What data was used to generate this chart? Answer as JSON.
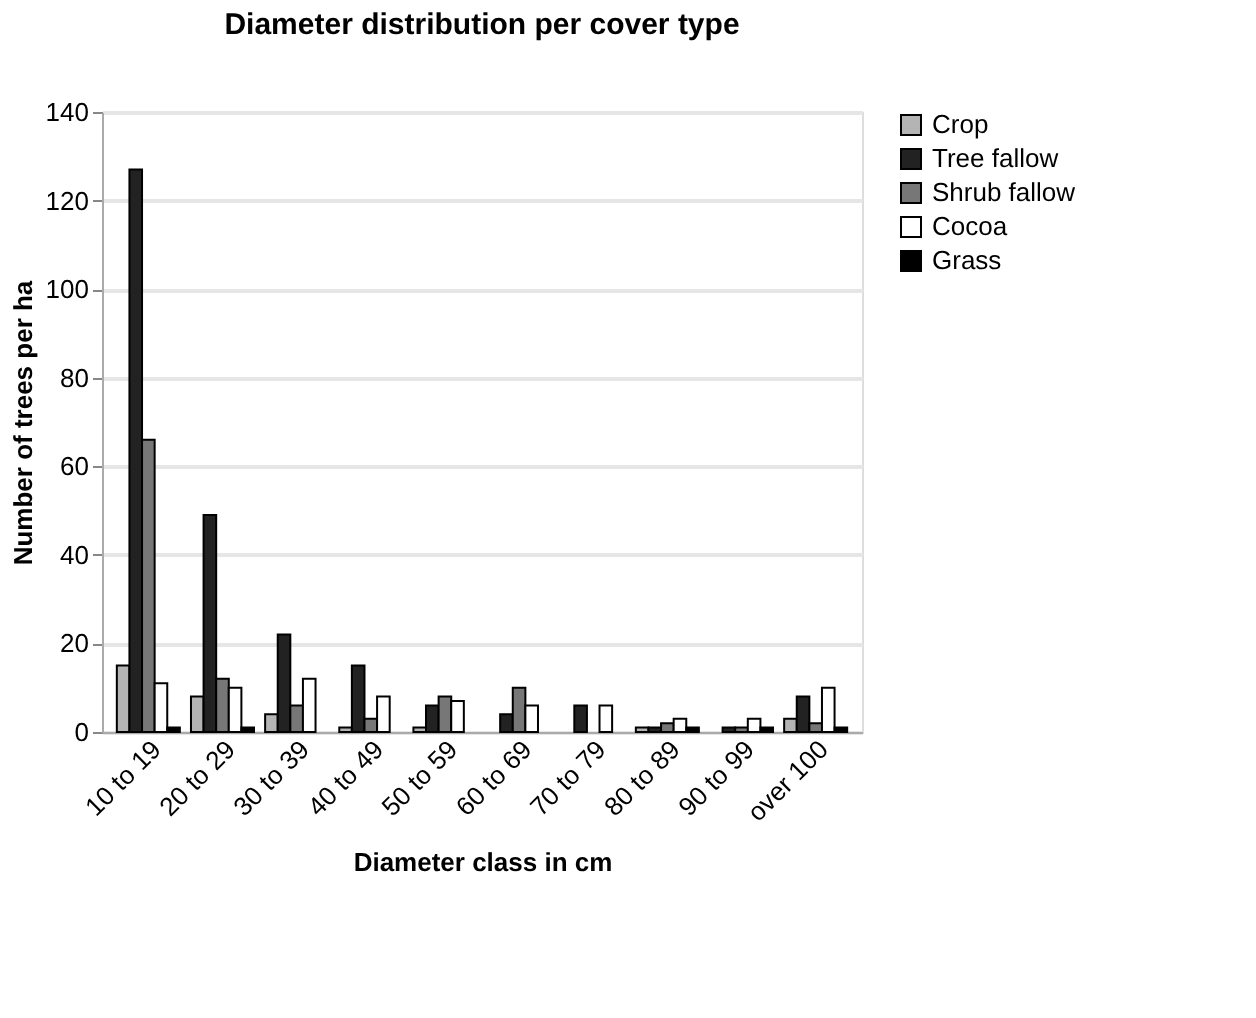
{
  "chart_data": {
    "type": "bar",
    "title": "Diameter distribution per cover type",
    "xlabel": "Diameter class in cm",
    "ylabel": "Number of trees per ha",
    "categories": [
      "10 to 19",
      "20 to 29",
      "30 to 39",
      "40 to 49",
      "50 to 59",
      "60 to 69",
      "70 to 79",
      "80 to 89",
      "90 to 99",
      "over 100"
    ],
    "series": [
      {
        "name": "Crop",
        "color": "#b4b4b4",
        "values": [
          15,
          8,
          4,
          1,
          1,
          0,
          0,
          1,
          0,
          3
        ]
      },
      {
        "name": "Tree fallow",
        "color": "#222222",
        "values": [
          127,
          49,
          22,
          15,
          6,
          4,
          6,
          1,
          1,
          8
        ]
      },
      {
        "name": "Shrub fallow",
        "color": "#777777",
        "values": [
          66,
          12,
          6,
          3,
          8,
          10,
          0,
          2,
          1,
          2
        ]
      },
      {
        "name": "Cocoa",
        "color": "#ffffff",
        "values": [
          11,
          10,
          12,
          8,
          7,
          6,
          6,
          3,
          3,
          10
        ]
      },
      {
        "name": "Grass",
        "color": "#000000",
        "values": [
          1,
          1,
          0,
          0,
          0,
          0,
          0,
          1,
          1,
          1
        ]
      }
    ],
    "ylim": [
      0,
      140
    ],
    "yticks": [
      0,
      20,
      40,
      60,
      80,
      100,
      120,
      140
    ],
    "grid": "y",
    "legend": "right"
  }
}
